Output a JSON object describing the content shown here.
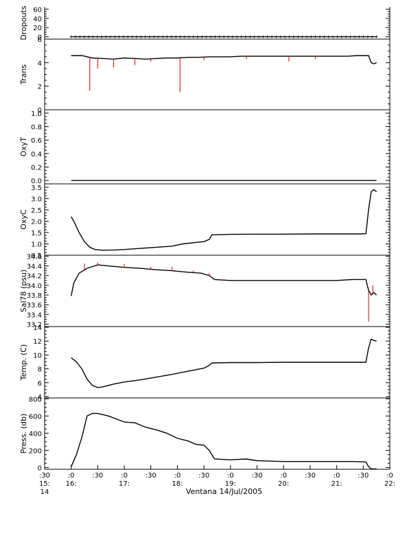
{
  "chart_data": {
    "type": "line",
    "xlabel": "Ventana 14/Jul/2005",
    "x_ticks": [
      {
        "t": 15.5,
        "top": ":30",
        "bottom": "15:",
        "extra": "14"
      },
      {
        "t": 16.0,
        "top": ":0",
        "bottom": "16:",
        "extra": ""
      },
      {
        "t": 16.5,
        "top": ":30",
        "bottom": "",
        "extra": ""
      },
      {
        "t": 17.0,
        "top": ":0",
        "bottom": "17:",
        "extra": ""
      },
      {
        "t": 17.5,
        "top": ":30",
        "bottom": "",
        "extra": ""
      },
      {
        "t": 18.0,
        "top": ":0",
        "bottom": "18:",
        "extra": ""
      },
      {
        "t": 18.5,
        "top": ":30",
        "bottom": "",
        "extra": ""
      },
      {
        "t": 19.0,
        "top": ":0",
        "bottom": "19:",
        "extra": ""
      },
      {
        "t": 19.5,
        "top": ":30",
        "bottom": "",
        "extra": ""
      },
      {
        "t": 20.0,
        "top": ":0",
        "bottom": "20:",
        "extra": ""
      },
      {
        "t": 20.5,
        "top": ":30",
        "bottom": "",
        "extra": ""
      },
      {
        "t": 21.0,
        "top": ":0",
        "bottom": "21:",
        "extra": ""
      },
      {
        "t": 21.5,
        "top": ":30",
        "bottom": "",
        "extra": ""
      },
      {
        "t": 22.0,
        "top": ":0",
        "bottom": "22:",
        "extra": ""
      }
    ],
    "xlim": [
      15.5,
      22.0
    ],
    "panels": [
      {
        "ylabel": "Dropouts",
        "ylim": [
          -5,
          65
        ],
        "yticks": [
          "0",
          "20",
          "40",
          "60"
        ],
        "ytick_values": [
          0,
          20,
          40,
          60
        ],
        "extra_ticks": [
          {
            "value": 0,
            "label": "0"
          }
        ],
        "series": [
          {
            "color": "#000000",
            "marker": "+",
            "x": [
              16.0,
              21.75
            ],
            "y": [
              0,
              0
            ]
          }
        ]
      },
      {
        "ylabel": "Trans",
        "ylim": [
          0,
          6
        ],
        "yticks": [
          "0",
          "2",
          "4",
          "6"
        ],
        "ytick_values": [
          0,
          2,
          4,
          6
        ],
        "series": [
          {
            "color": "#000000",
            "x": [
              16.0,
              16.2,
              16.4,
              16.6,
              16.8,
              17.0,
              17.2,
              17.4,
              17.6,
              17.8,
              18.0,
              18.2,
              18.4,
              18.6,
              18.8,
              19.0,
              19.2,
              19.4,
              19.6,
              19.8,
              20.0,
              20.2,
              20.4,
              20.6,
              20.8,
              21.0,
              21.2,
              21.4,
              21.6,
              21.65,
              21.7,
              21.75
            ],
            "y": [
              4.6,
              4.6,
              4.4,
              4.35,
              4.3,
              4.4,
              4.35,
              4.3,
              4.35,
              4.4,
              4.4,
              4.45,
              4.45,
              4.5,
              4.5,
              4.5,
              4.55,
              4.55,
              4.55,
              4.55,
              4.55,
              4.55,
              4.55,
              4.55,
              4.55,
              4.55,
              4.55,
              4.6,
              4.6,
              4.0,
              3.9,
              4.0
            ]
          },
          {
            "color": "#cc0000",
            "type": "spikes",
            "x": [
              16.35,
              16.5,
              16.8,
              17.2,
              17.5,
              18.05,
              18.5,
              19.3,
              20.1,
              20.6
            ],
            "y": [
              1.6,
              3.5,
              3.6,
              3.8,
              4.1,
              1.5,
              4.2,
              4.3,
              4.1,
              4.3
            ]
          }
        ]
      },
      {
        "ylabel": "OxyT",
        "ylim": [
          -0.05,
          1.05
        ],
        "yticks": [
          "0.0",
          "0.2",
          "0.4",
          "0.6",
          "0.8",
          "1.0"
        ],
        "ytick_values": [
          0.0,
          0.2,
          0.4,
          0.6,
          0.8,
          1.0
        ],
        "series": [
          {
            "color": "#000000",
            "x": [
              16.0,
              21.75
            ],
            "y": [
              0.0,
              0.0
            ]
          }
        ]
      },
      {
        "ylabel": "OxyC",
        "ylim": [
          0.5,
          3.65
        ],
        "yticks": [
          "0.5",
          "1.0",
          "1.5",
          "2.0",
          "2.5",
          "3.0",
          "3.5"
        ],
        "ytick_values": [
          0.5,
          1.0,
          1.5,
          2.0,
          2.5,
          3.0,
          3.5
        ],
        "series": [
          {
            "color": "#000000",
            "x": [
              16.0,
              16.05,
              16.15,
              16.25,
              16.35,
              16.45,
              16.6,
              16.8,
              17.0,
              17.3,
              17.6,
              17.9,
              18.1,
              18.3,
              18.5,
              18.6,
              18.65,
              19.0,
              19.5,
              20.0,
              20.5,
              21.0,
              21.3,
              21.45,
              21.55,
              21.6,
              21.65,
              21.7,
              21.75
            ],
            "y": [
              2.2,
              2.0,
              1.5,
              1.1,
              0.85,
              0.75,
              0.72,
              0.73,
              0.75,
              0.8,
              0.85,
              0.9,
              1.0,
              1.05,
              1.1,
              1.2,
              1.4,
              1.42,
              1.43,
              1.43,
              1.44,
              1.44,
              1.44,
              1.44,
              1.45,
              2.5,
              3.3,
              3.4,
              3.3
            ]
          }
        ]
      },
      {
        "ylabel": "Sal78 (psu)",
        "ylim": [
          33.15,
          34.62
        ],
        "yticks": [
          "33.2",
          "33.4",
          "33.6",
          "33.8",
          "34.0",
          "34.2",
          "34.4",
          "34.6"
        ],
        "ytick_values": [
          33.2,
          33.4,
          33.6,
          33.8,
          34.0,
          34.2,
          34.4,
          34.6
        ],
        "extra_ticks": [
          {
            "value": 34.6,
            "label": "34.6"
          }
        ],
        "series": [
          {
            "color": "#000000",
            "x": [
              16.0,
              16.05,
              16.15,
              16.3,
              16.5,
              16.7,
              17.0,
              17.3,
              17.6,
              17.9,
              18.2,
              18.45,
              18.6,
              18.7,
              19.0,
              19.5,
              20.0,
              20.5,
              21.0,
              21.3,
              21.55,
              21.6,
              21.65,
              21.7,
              21.75
            ],
            "y": [
              33.78,
              34.05,
              34.25,
              34.35,
              34.42,
              34.4,
              34.37,
              34.35,
              34.32,
              34.3,
              34.27,
              34.25,
              34.2,
              34.12,
              34.1,
              34.1,
              34.1,
              34.1,
              34.1,
              34.12,
              34.12,
              33.9,
              33.8,
              33.85,
              33.8
            ]
          },
          {
            "color": "#cc0000",
            "type": "spikes",
            "x": [
              16.25,
              16.5,
              17.0,
              17.5,
              17.9,
              18.3,
              18.6,
              21.6,
              21.68
            ],
            "y": [
              34.45,
              34.47,
              34.44,
              34.38,
              34.38,
              34.3,
              34.25,
              33.25,
              34.0
            ]
          }
        ]
      },
      {
        "ylabel": "Temp. (C)",
        "ylim": [
          3.8,
          14.1
        ],
        "yticks": [
          "4",
          "6",
          "8",
          "10",
          "12",
          "14"
        ],
        "ytick_values": [
          4,
          6,
          8,
          10,
          12,
          14
        ],
        "extra_ticks": [
          {
            "value": 14,
            "label": "14"
          }
        ],
        "series": [
          {
            "color": "#000000",
            "x": [
              16.0,
              16.1,
              16.2,
              16.3,
              16.4,
              16.5,
              16.6,
              16.8,
              17.0,
              17.3,
              17.6,
              17.9,
              18.1,
              18.3,
              18.5,
              18.6,
              18.65,
              19.0,
              19.5,
              20.0,
              20.5,
              21.0,
              21.3,
              21.55,
              21.6,
              21.65,
              21.7,
              21.75
            ],
            "y": [
              9.6,
              9.0,
              8.0,
              6.5,
              5.6,
              5.3,
              5.4,
              5.8,
              6.1,
              6.4,
              6.8,
              7.2,
              7.5,
              7.8,
              8.1,
              8.5,
              8.85,
              8.9,
              8.9,
              8.95,
              8.95,
              8.95,
              8.95,
              8.95,
              11.0,
              12.3,
              12.1,
              12.0
            ]
          }
        ]
      },
      {
        "ylabel": "Press. (db)",
        "ylim": [
          -20,
          810
        ],
        "yticks": [
          "0",
          "200",
          "400",
          "600",
          "800"
        ],
        "ytick_values": [
          0,
          200,
          400,
          600,
          800
        ],
        "series": [
          {
            "color": "#000000",
            "x": [
              16.0,
              16.1,
              16.2,
              16.3,
              16.4,
              16.5,
              16.7,
              17.0,
              17.2,
              17.4,
              17.6,
              17.8,
              18.0,
              18.2,
              18.35,
              18.5,
              18.6,
              18.7,
              19.0,
              19.3,
              19.5,
              20.0,
              20.5,
              21.0,
              21.3,
              21.55,
              21.6,
              21.65,
              21.75
            ],
            "y": [
              10,
              150,
              350,
              600,
              630,
              630,
              600,
              530,
              520,
              470,
              440,
              400,
              340,
              310,
              270,
              260,
              200,
              100,
              90,
              100,
              80,
              70,
              70,
              70,
              70,
              65,
              10,
              -15,
              -15
            ]
          }
        ]
      }
    ]
  }
}
